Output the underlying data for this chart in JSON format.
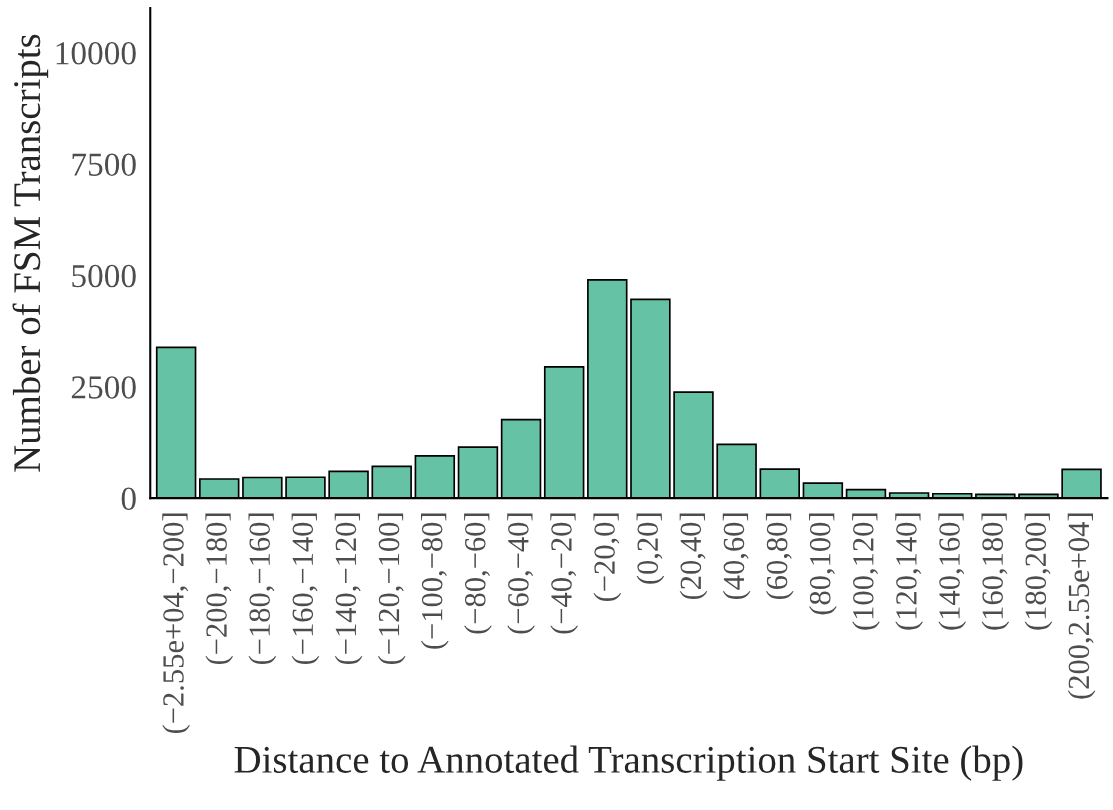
{
  "chart_data": {
    "type": "bar",
    "xlabel": "Distance to Annotated Transcription Start Site (bp)",
    "ylabel": "Number of FSM Transcripts",
    "categories": [
      "(−2.55e+04,−200]",
      "(−200,−180]",
      "(−180,−160]",
      "(−160,−140]",
      "(−140,−120]",
      "(−120,−100]",
      "(−100,−80]",
      "(−80,−60]",
      "(−60,−40]",
      "(−40,−20]",
      "(−20,0]",
      "(0,20]",
      "(20,40]",
      "(40,60]",
      "(60,80]",
      "(80,100]",
      "(100,120]",
      "(120,140]",
      "(140,160]",
      "(160,180]",
      "(180,200]",
      "(200,2.55e+04]"
    ],
    "values": [
      3385,
      430,
      463,
      470,
      600,
      714,
      950,
      1144,
      1761,
      2946,
      4900,
      4463,
      2380,
      1207,
      653,
      339,
      190,
      116,
      99,
      83,
      83,
      645
    ],
    "color": "#66c2a5",
    "ylim": [
      0,
      11000
    ],
    "yticks": [
      0,
      2500,
      5000,
      7500,
      10000
    ],
    "grid": false,
    "legend": false
  }
}
